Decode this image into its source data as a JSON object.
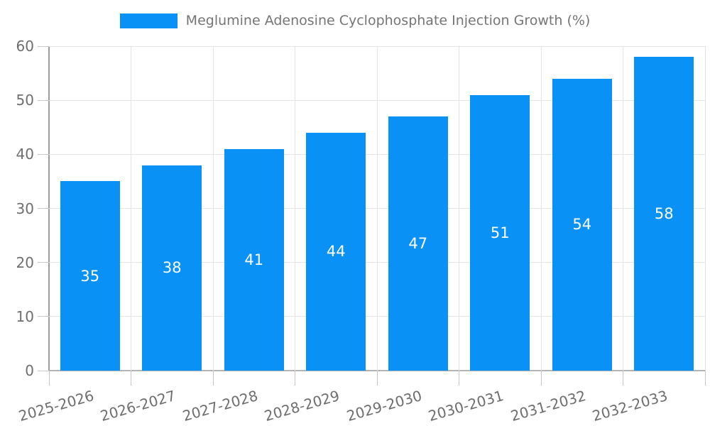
{
  "legend": {
    "label": "Meglumine Adenosine Cyclophosphate Injection Growth (%)"
  },
  "chart_data": {
    "type": "bar",
    "title": "Meglumine Adenosine Cyclophosphate Injection Growth (%)",
    "categories": [
      "2025-2026",
      "2026-2027",
      "2027-2028",
      "2028-2029",
      "2029-2030",
      "2030-2031",
      "2031-2032",
      "2032-2033"
    ],
    "values": [
      35,
      38,
      41,
      44,
      47,
      51,
      54,
      58
    ],
    "series": [
      {
        "name": "Meglumine Adenosine Cyclophosphate Injection Growth (%)",
        "values": [
          35,
          38,
          41,
          44,
          47,
          51,
          54,
          58
        ]
      }
    ],
    "xlabel": "",
    "ylabel": "",
    "ylim": [
      0,
      60
    ],
    "yticks": [
      0,
      10,
      20,
      30,
      40,
      50,
      60
    ],
    "grid": true,
    "legend_position": "top-center",
    "x_tick_rotation_deg": -16,
    "value_labels": "centered-inside-bars",
    "colors": {
      "bar": "#0a91f5",
      "value_label": "#ffffff",
      "tick_text": "#6e6e6e",
      "legend_text": "#757575",
      "gridline": "#e4e4e4",
      "axis_line": "#9c9c9c"
    }
  }
}
